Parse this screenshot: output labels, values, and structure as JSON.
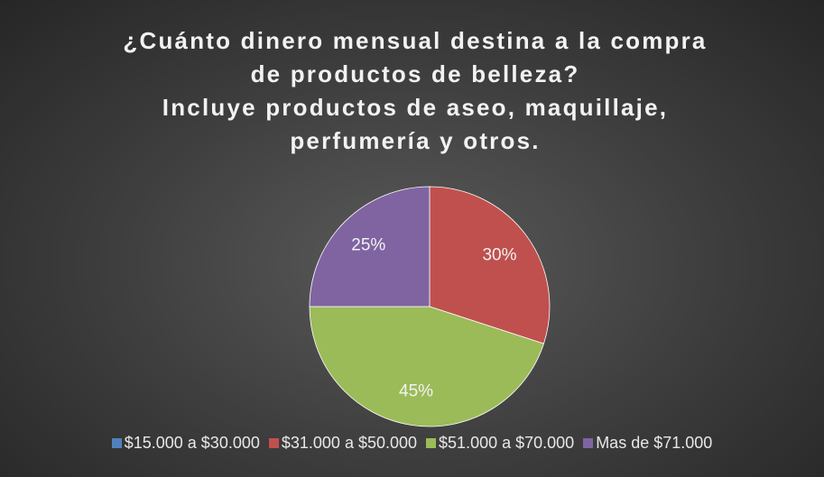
{
  "chart_data": {
    "type": "pie",
    "title": [
      "¿Cuánto dinero mensual destina a la compra",
      "de productos de belleza?",
      "Incluye productos de aseo, maquillaje,",
      "perfumería y otros."
    ],
    "categories": [
      "$15.000 a $30.000",
      "$31.000 a $50.000",
      "$51.000 a $70.000",
      "Mas de $71.000"
    ],
    "values": [
      0,
      30,
      45,
      25
    ],
    "value_labels": [
      null,
      "30%",
      "45%",
      "25%"
    ],
    "colors": [
      "#4f81bd",
      "#c0504d",
      "#9bbb59",
      "#8064a2"
    ],
    "legend": "bottom"
  }
}
